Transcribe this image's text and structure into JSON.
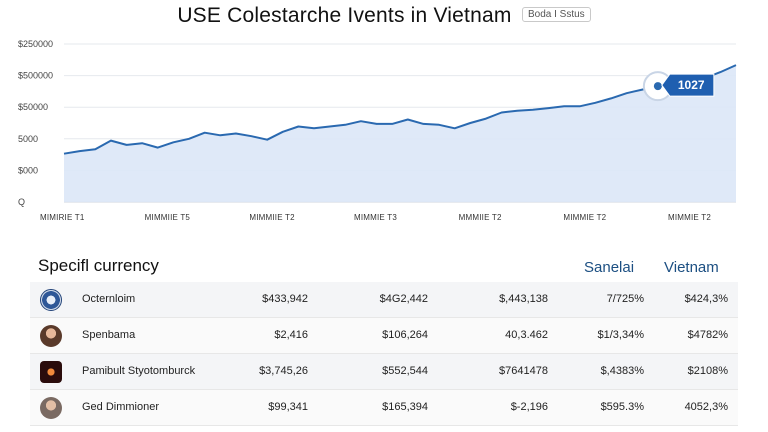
{
  "header": {
    "title": "USE Colestarche Ivents in Vietnam",
    "subtitle": "Boda I Sstus"
  },
  "chart_data": {
    "type": "area",
    "y_tick_labels": [
      "$250000",
      "$500000",
      "$50000",
      "5000",
      "$000",
      "Q"
    ],
    "x_tick_labels": [
      "MIMIRIE T1",
      "MIMMIIE T5",
      "MIMMIIE T2",
      "MIMMIE T3",
      "MMMIIE T2",
      "MIMMIE T2",
      "MIMMIE T2"
    ],
    "values": [
      55,
      58,
      60,
      70,
      65,
      67,
      62,
      68,
      72,
      79,
      76,
      78,
      75,
      71,
      80,
      86,
      84,
      86,
      88,
      92,
      89,
      89,
      94,
      89,
      88,
      84,
      90,
      95,
      102,
      104,
      105,
      107,
      109,
      109,
      113,
      118,
      124,
      128,
      132,
      135,
      138,
      141,
      148,
      156
    ],
    "ylim": [
      0,
      180
    ],
    "highlight": {
      "index": 38,
      "label": "1027"
    },
    "grid": true,
    "line_color": "#2a69b0",
    "fill_color": "#dbe7f7"
  },
  "table": {
    "first_header": "Specifl currency",
    "column_headers": [
      "Sanelai",
      "Vietnam"
    ],
    "rows": [
      {
        "name": "Octernloim",
        "values": [
          "$433,942",
          "$4G2,442",
          "$,443,138",
          "7/725%",
          "$424,3%"
        ]
      },
      {
        "name": "Spenbama",
        "values": [
          "$2,416",
          "$106,264",
          "40,3.462",
          "$1/3,34%",
          "$4782%"
        ]
      },
      {
        "name": "Pamibult Styotomburck",
        "values": [
          "$3,745,26",
          "$552,544",
          "$7641478",
          "$,4383%",
          "$2108%"
        ]
      },
      {
        "name": "Ged Dimmioner",
        "values": [
          "$99,341",
          "$165,394",
          "$-2,196",
          "$595.3%",
          "4052,3%"
        ]
      }
    ]
  }
}
